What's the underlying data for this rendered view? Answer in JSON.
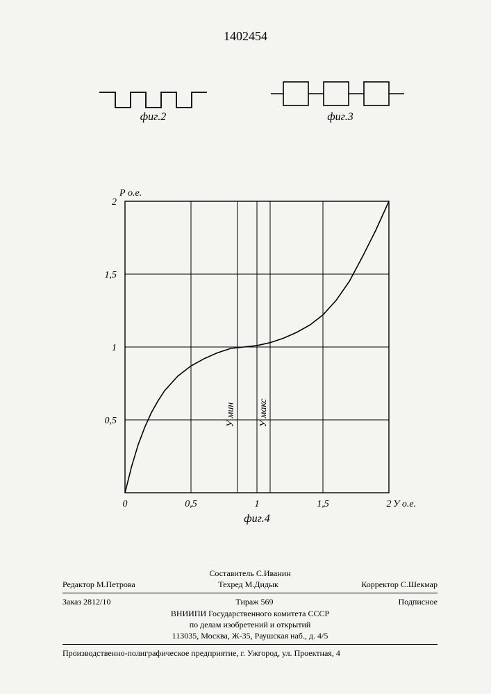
{
  "doc_number": "1402454",
  "fig2": {
    "caption": "фиг.2"
  },
  "fig3": {
    "caption": "фиг.3"
  },
  "chart": {
    "type": "line",
    "caption": "фиг.4",
    "x_axis_label": "У о.е.",
    "y_axis_label": "Р о.е.",
    "xlim": [
      0,
      2
    ],
    "ylim": [
      0,
      2
    ],
    "xtick_step": 0.5,
    "ytick_step": 0.5,
    "x_ticks_labels": [
      "0",
      "0,5",
      "1",
      "1,5",
      "2"
    ],
    "y_ticks_labels": [
      "0",
      "0,5",
      "1",
      "1,5",
      "2"
    ],
    "vlines": {
      "umin": {
        "x": 0.85,
        "label": "У мин"
      },
      "umax": {
        "x": 1.1,
        "label": "У макс"
      }
    },
    "curve_points": [
      [
        0.0,
        0.0
      ],
      [
        0.05,
        0.18
      ],
      [
        0.1,
        0.33
      ],
      [
        0.15,
        0.45
      ],
      [
        0.2,
        0.55
      ],
      [
        0.25,
        0.63
      ],
      [
        0.3,
        0.7
      ],
      [
        0.4,
        0.8
      ],
      [
        0.5,
        0.87
      ],
      [
        0.6,
        0.92
      ],
      [
        0.7,
        0.96
      ],
      [
        0.8,
        0.99
      ],
      [
        0.9,
        1.0
      ],
      [
        1.0,
        1.01
      ],
      [
        1.1,
        1.03
      ],
      [
        1.2,
        1.06
      ],
      [
        1.3,
        1.1
      ],
      [
        1.4,
        1.15
      ],
      [
        1.5,
        1.22
      ],
      [
        1.6,
        1.32
      ],
      [
        1.7,
        1.45
      ],
      [
        1.8,
        1.62
      ],
      [
        1.9,
        1.8
      ],
      [
        2.0,
        2.0
      ]
    ],
    "stroke_color": "#000000",
    "stroke_width": 1.6,
    "grid_color": "#000000",
    "grid_width": 1,
    "background_color": "#f4f4f0",
    "label_fontsize": 14,
    "tick_fontsize": 14
  },
  "footer": {
    "line1_left": "Редактор М.Петрова",
    "line1_mid_top": "Составитель С.Иванин",
    "line1_mid": "Техред М.Дидык",
    "line1_right": "Корректор С.Шекмар",
    "line2_left": "Заказ 2812/10",
    "line2_mid": "Тираж 569",
    "line2_right": "Подписное",
    "org1": "ВНИИПИ Государственного комитета СССР",
    "org2": "по делам изобретений и открытий",
    "addr": "113035, Москва, Ж-35, Раушская наб., д. 4/5",
    "bottom": "Производственно-полиграфическое предприятие, г. Ужгород, ул. Проектная, 4"
  }
}
